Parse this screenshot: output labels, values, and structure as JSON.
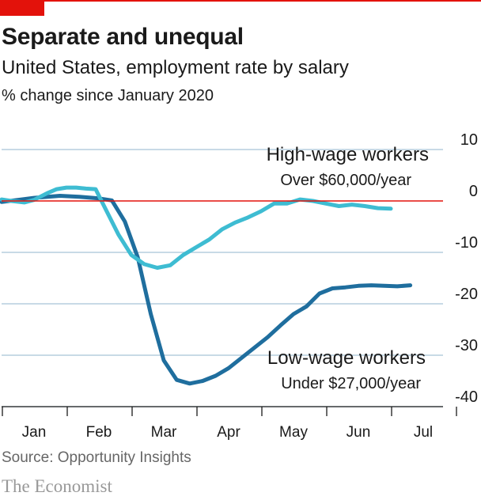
{
  "header": {
    "title": "Separate and unequal",
    "subtitle": "United States, employment rate by salary",
    "unit": "% change since January 2020"
  },
  "footer": {
    "source": "Source: Opportunity Insights",
    "brand": "The Economist"
  },
  "colors": {
    "brand_red": "#e3120b",
    "high_wage": "#3ebcd2",
    "low_wage": "#1f6e9e",
    "grid": "#a7c4d6",
    "zero_line": "#e3120b"
  },
  "chart_data": {
    "type": "line",
    "ylim": [
      -40,
      10
    ],
    "yticks": [
      "10",
      "0",
      "-10",
      "-20",
      "-30",
      "-40"
    ],
    "ytick_values": [
      10,
      0,
      -10,
      -20,
      -30,
      -40
    ],
    "months": [
      "Jan",
      "Feb",
      "Mar",
      "Apr",
      "May",
      "Jun",
      "Jul"
    ],
    "grid": true,
    "series": [
      {
        "name": "High-wage workers",
        "label": "High-wage workers",
        "sublabel": "Over $60,000/year",
        "points": [
          [
            0,
            0.3
          ],
          [
            0.15,
            0
          ],
          [
            0.35,
            -0.3
          ],
          [
            0.5,
            0.2
          ],
          [
            0.7,
            1.5
          ],
          [
            0.85,
            2.3
          ],
          [
            1.0,
            2.6
          ],
          [
            1.15,
            2.6
          ],
          [
            1.3,
            2.4
          ],
          [
            1.45,
            2.3
          ],
          [
            1.6,
            -1.5
          ],
          [
            1.8,
            -6.5
          ],
          [
            2.0,
            -10.5
          ],
          [
            2.2,
            -12.3
          ],
          [
            2.4,
            -13.0
          ],
          [
            2.6,
            -12.5
          ],
          [
            2.8,
            -10.5
          ],
          [
            3.0,
            -9.0
          ],
          [
            3.2,
            -7.5
          ],
          [
            3.4,
            -5.5
          ],
          [
            3.6,
            -4.2
          ],
          [
            3.8,
            -3.2
          ],
          [
            4.0,
            -2.0
          ],
          [
            4.2,
            -0.5
          ],
          [
            4.4,
            -0.5
          ],
          [
            4.6,
            0.3
          ],
          [
            4.8,
            0
          ],
          [
            5.0,
            -0.5
          ],
          [
            5.2,
            -1.0
          ],
          [
            5.4,
            -0.7
          ],
          [
            5.6,
            -1.0
          ],
          [
            5.8,
            -1.4
          ],
          [
            6.0,
            -1.5
          ]
        ]
      },
      {
        "name": "Low-wage workers",
        "label": "Low-wage workers",
        "sublabel": "Under $27,000/year",
        "points": [
          [
            0,
            -0.2
          ],
          [
            0.5,
            0.6
          ],
          [
            0.9,
            1.0
          ],
          [
            1.2,
            0.8
          ],
          [
            1.5,
            0.5
          ],
          [
            1.7,
            0.1
          ],
          [
            1.9,
            -4.0
          ],
          [
            2.1,
            -11.0
          ],
          [
            2.3,
            -22.0
          ],
          [
            2.5,
            -31.0
          ],
          [
            2.7,
            -34.8
          ],
          [
            2.9,
            -35.5
          ],
          [
            3.1,
            -35.0
          ],
          [
            3.3,
            -34.0
          ],
          [
            3.5,
            -32.5
          ],
          [
            3.7,
            -30.5
          ],
          [
            3.9,
            -28.5
          ],
          [
            4.1,
            -26.5
          ],
          [
            4.3,
            -24.2
          ],
          [
            4.5,
            -22.0
          ],
          [
            4.7,
            -20.5
          ],
          [
            4.9,
            -18.0
          ],
          [
            5.1,
            -17.0
          ],
          [
            5.3,
            -16.8
          ],
          [
            5.5,
            -16.5
          ],
          [
            5.7,
            -16.4
          ],
          [
            5.9,
            -16.5
          ],
          [
            6.1,
            -16.6
          ],
          [
            6.3,
            -16.4
          ]
        ]
      }
    ]
  }
}
